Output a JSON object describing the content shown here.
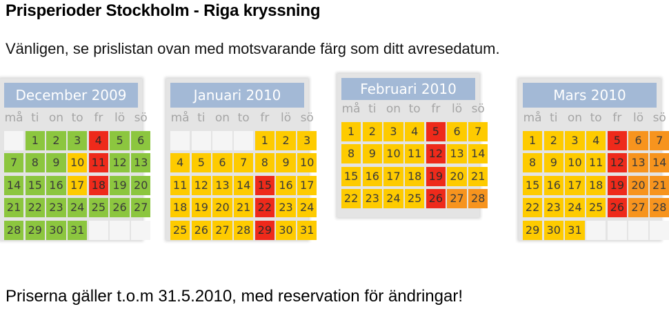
{
  "title": "Prisperioder Stockholm - Riga kryssning",
  "subtitle": "Vänligen, se prislistan ovan med motsvarande färg som ditt avresedatum.",
  "footer": "Priserna gäller t.o.m 31.5.2010, med reservation för ändringar!",
  "weekdays": [
    "må",
    "ti",
    "on",
    "to",
    "fr",
    "lö",
    "sö"
  ],
  "colors": {
    "g": "#8cc63f",
    "y": "#fecb00",
    "o": "#f7941e",
    "r": "#ee2a1b",
    "e": "#f5f5f5"
  },
  "calendars": [
    {
      "title": "December 2009",
      "weeks": [
        [
          [
            "",
            "e"
          ],
          [
            "1",
            "g"
          ],
          [
            "2",
            "g"
          ],
          [
            "3",
            "g"
          ],
          [
            "4",
            "r"
          ],
          [
            "5",
            "g"
          ],
          [
            "6",
            "g"
          ]
        ],
        [
          [
            "7",
            "g"
          ],
          [
            "8",
            "g"
          ],
          [
            "9",
            "g"
          ],
          [
            "10",
            "y"
          ],
          [
            "11",
            "r"
          ],
          [
            "12",
            "g"
          ],
          [
            "13",
            "g"
          ]
        ],
        [
          [
            "14",
            "g"
          ],
          [
            "15",
            "g"
          ],
          [
            "16",
            "g"
          ],
          [
            "17",
            "y"
          ],
          [
            "18",
            "r"
          ],
          [
            "19",
            "g"
          ],
          [
            "20",
            "g"
          ]
        ],
        [
          [
            "21",
            "g"
          ],
          [
            "22",
            "g"
          ],
          [
            "23",
            "g"
          ],
          [
            "24",
            "g"
          ],
          [
            "25",
            "g"
          ],
          [
            "26",
            "g"
          ],
          [
            "27",
            "g"
          ]
        ],
        [
          [
            "28",
            "g"
          ],
          [
            "29",
            "g"
          ],
          [
            "30",
            "g"
          ],
          [
            "31",
            "g"
          ],
          [
            "",
            "e"
          ],
          [
            "",
            "e"
          ],
          [
            "",
            "e"
          ]
        ]
      ]
    },
    {
      "title": "Januari 2010",
      "weeks": [
        [
          [
            "",
            "e"
          ],
          [
            "",
            "e"
          ],
          [
            "",
            "e"
          ],
          [
            "",
            "e"
          ],
          [
            "1",
            "y"
          ],
          [
            "2",
            "y"
          ],
          [
            "3",
            "y"
          ]
        ],
        [
          [
            "4",
            "y"
          ],
          [
            "5",
            "y"
          ],
          [
            "6",
            "y"
          ],
          [
            "7",
            "y"
          ],
          [
            "8",
            "y"
          ],
          [
            "9",
            "y"
          ],
          [
            "10",
            "y"
          ]
        ],
        [
          [
            "11",
            "y"
          ],
          [
            "12",
            "y"
          ],
          [
            "13",
            "y"
          ],
          [
            "14",
            "y"
          ],
          [
            "15",
            "r"
          ],
          [
            "16",
            "y"
          ],
          [
            "17",
            "y"
          ]
        ],
        [
          [
            "18",
            "y"
          ],
          [
            "19",
            "y"
          ],
          [
            "20",
            "y"
          ],
          [
            "21",
            "y"
          ],
          [
            "22",
            "r"
          ],
          [
            "23",
            "y"
          ],
          [
            "24",
            "y"
          ]
        ],
        [
          [
            "25",
            "y"
          ],
          [
            "26",
            "y"
          ],
          [
            "27",
            "y"
          ],
          [
            "28",
            "y"
          ],
          [
            "29",
            "r"
          ],
          [
            "30",
            "y"
          ],
          [
            "31",
            "y"
          ]
        ]
      ]
    },
    {
      "title": "Februari 2010",
      "weeks": [
        [
          [
            "1",
            "y"
          ],
          [
            "2",
            "y"
          ],
          [
            "3",
            "y"
          ],
          [
            "4",
            "y"
          ],
          [
            "5",
            "r"
          ],
          [
            "6",
            "y"
          ],
          [
            "7",
            "y"
          ]
        ],
        [
          [
            "8",
            "y"
          ],
          [
            "9",
            "y"
          ],
          [
            "10",
            "y"
          ],
          [
            "11",
            "y"
          ],
          [
            "12",
            "r"
          ],
          [
            "13",
            "y"
          ],
          [
            "14",
            "y"
          ]
        ],
        [
          [
            "15",
            "y"
          ],
          [
            "16",
            "y"
          ],
          [
            "17",
            "y"
          ],
          [
            "18",
            "y"
          ],
          [
            "19",
            "r"
          ],
          [
            "20",
            "y"
          ],
          [
            "21",
            "y"
          ]
        ],
        [
          [
            "22",
            "y"
          ],
          [
            "23",
            "y"
          ],
          [
            "24",
            "y"
          ],
          [
            "25",
            "y"
          ],
          [
            "26",
            "r"
          ],
          [
            "27",
            "o"
          ],
          [
            "28",
            "o"
          ]
        ]
      ]
    },
    {
      "title": "Mars 2010",
      "weeks": [
        [
          [
            "1",
            "y"
          ],
          [
            "2",
            "y"
          ],
          [
            "3",
            "y"
          ],
          [
            "4",
            "y"
          ],
          [
            "5",
            "r"
          ],
          [
            "6",
            "o"
          ],
          [
            "7",
            "o"
          ]
        ],
        [
          [
            "8",
            "y"
          ],
          [
            "9",
            "y"
          ],
          [
            "10",
            "y"
          ],
          [
            "11",
            "y"
          ],
          [
            "12",
            "r"
          ],
          [
            "13",
            "o"
          ],
          [
            "14",
            "o"
          ]
        ],
        [
          [
            "15",
            "y"
          ],
          [
            "16",
            "y"
          ],
          [
            "17",
            "y"
          ],
          [
            "18",
            "y"
          ],
          [
            "19",
            "r"
          ],
          [
            "20",
            "o"
          ],
          [
            "21",
            "o"
          ]
        ],
        [
          [
            "22",
            "y"
          ],
          [
            "23",
            "y"
          ],
          [
            "24",
            "y"
          ],
          [
            "25",
            "y"
          ],
          [
            "26",
            "r"
          ],
          [
            "27",
            "o"
          ],
          [
            "28",
            "o"
          ]
        ],
        [
          [
            "29",
            "y"
          ],
          [
            "30",
            "y"
          ],
          [
            "31",
            "y"
          ],
          [
            "",
            "e"
          ],
          [
            "",
            "e"
          ],
          [
            "",
            "e"
          ],
          [
            "",
            "e"
          ]
        ]
      ]
    }
  ]
}
